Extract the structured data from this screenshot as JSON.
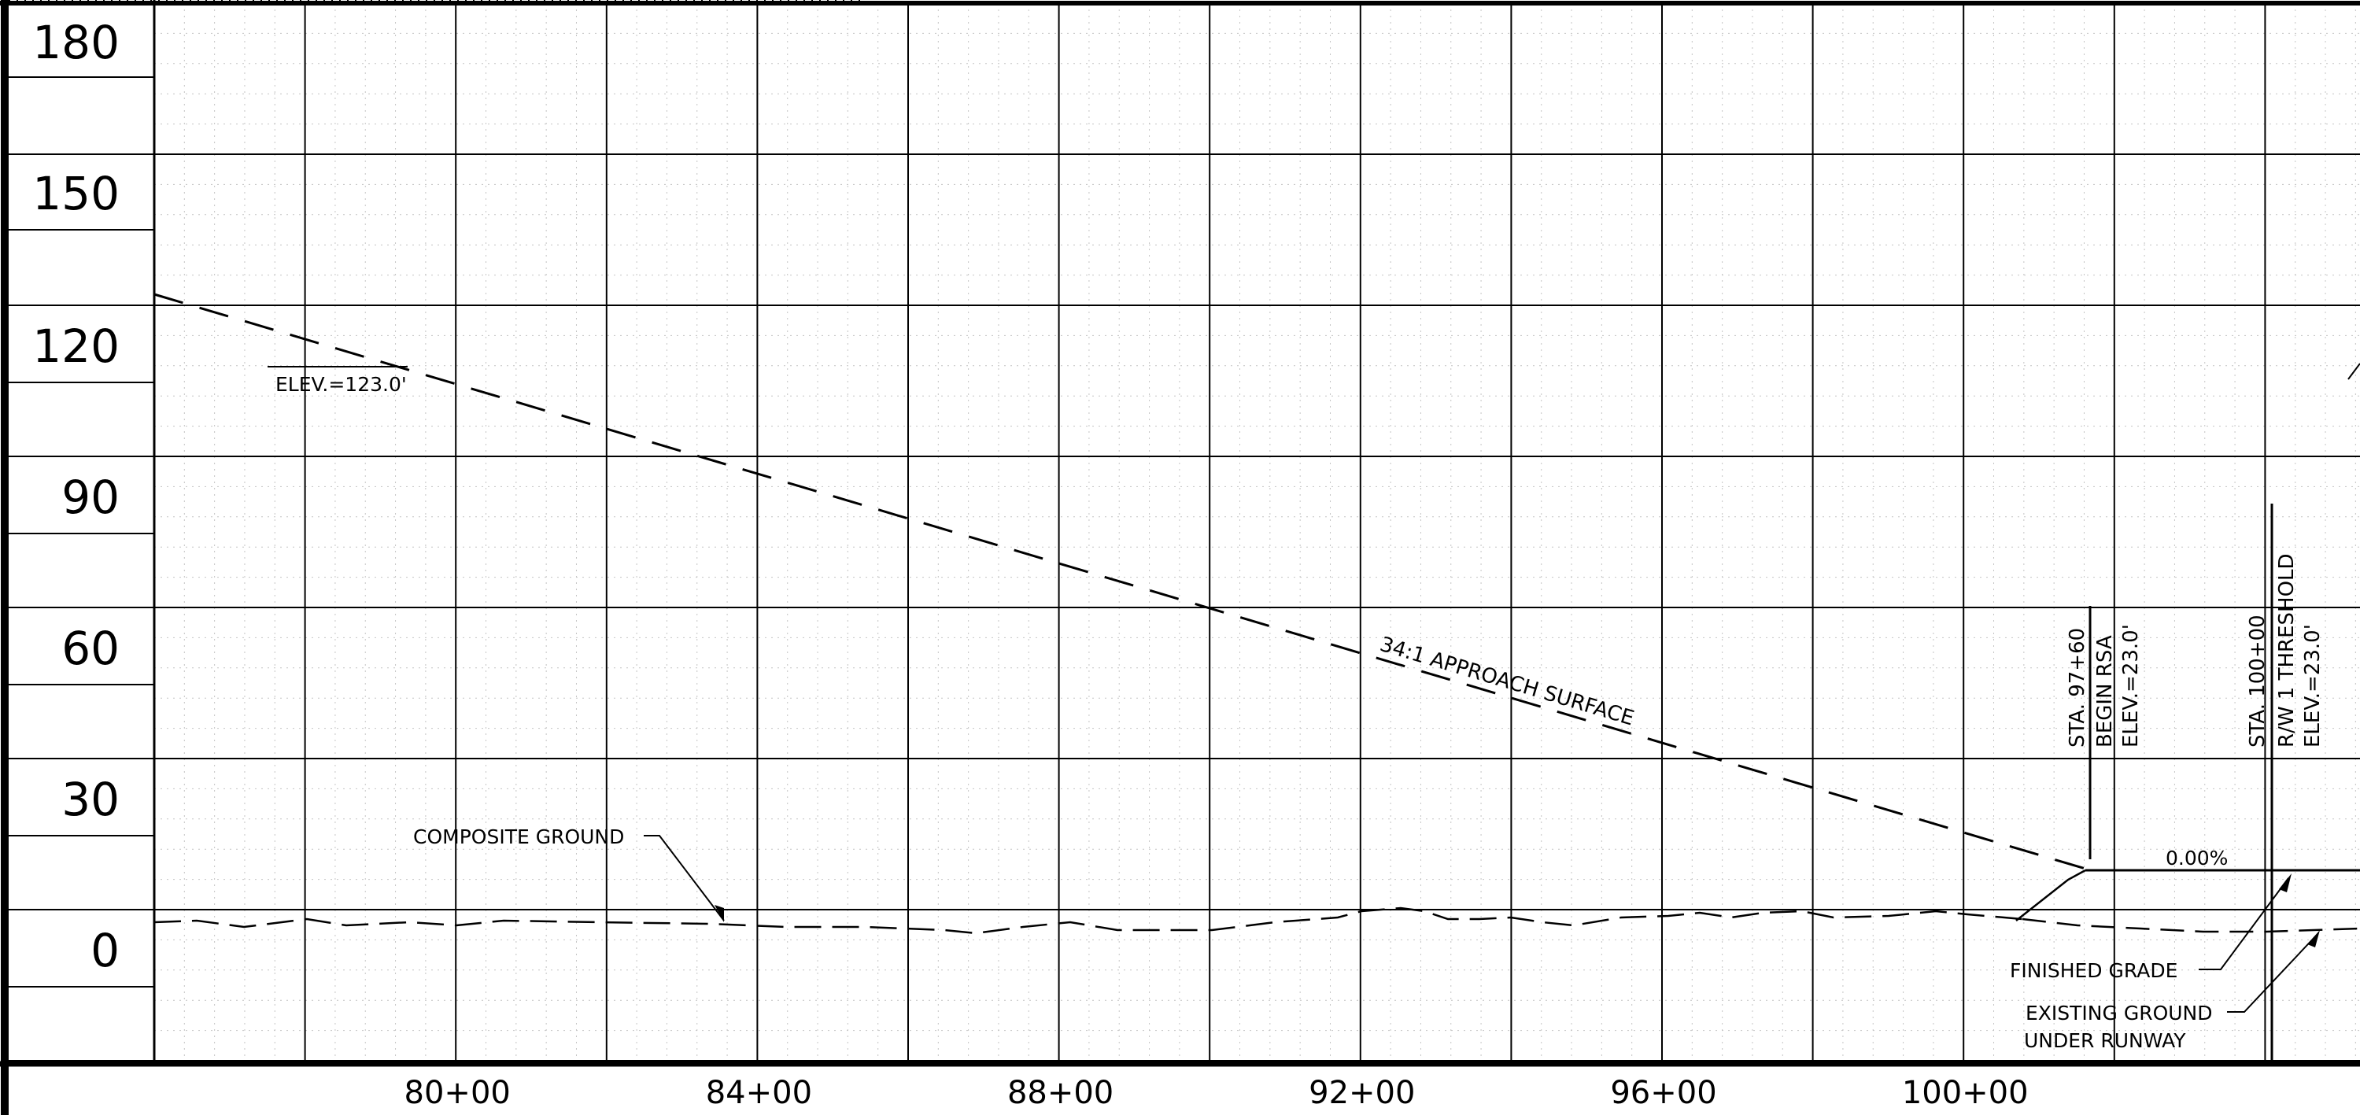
{
  "profile": {
    "elevation_labels": [
      "180",
      "150",
      "120",
      "90",
      "60",
      "30",
      "0"
    ],
    "station_labels": [
      "80+00",
      "84+00",
      "88+00",
      "92+00",
      "96+00",
      "100+00"
    ],
    "annotations": {
      "elev_top": "ELEV.=123.0'",
      "approach_surface": "34:1 APPROACH SURFACE",
      "composite_ground": "COMPOSITE GROUND",
      "grade_percent": "0.00%",
      "finished_grade": "FINISHED GRADE",
      "existing_ground_1": "EXISTING GROUND",
      "existing_ground_2": "UNDER RUNWAY",
      "rsa_sta": "STA. 97+60",
      "rsa_begin": "BEGIN RSA",
      "rsa_elev": "ELEV.=23.0'",
      "thr_sta": "STA. 100+00",
      "thr_rw": "R/W 1 THRESHOLD",
      "thr_elev": "ELEV.=23.0'"
    }
  }
}
